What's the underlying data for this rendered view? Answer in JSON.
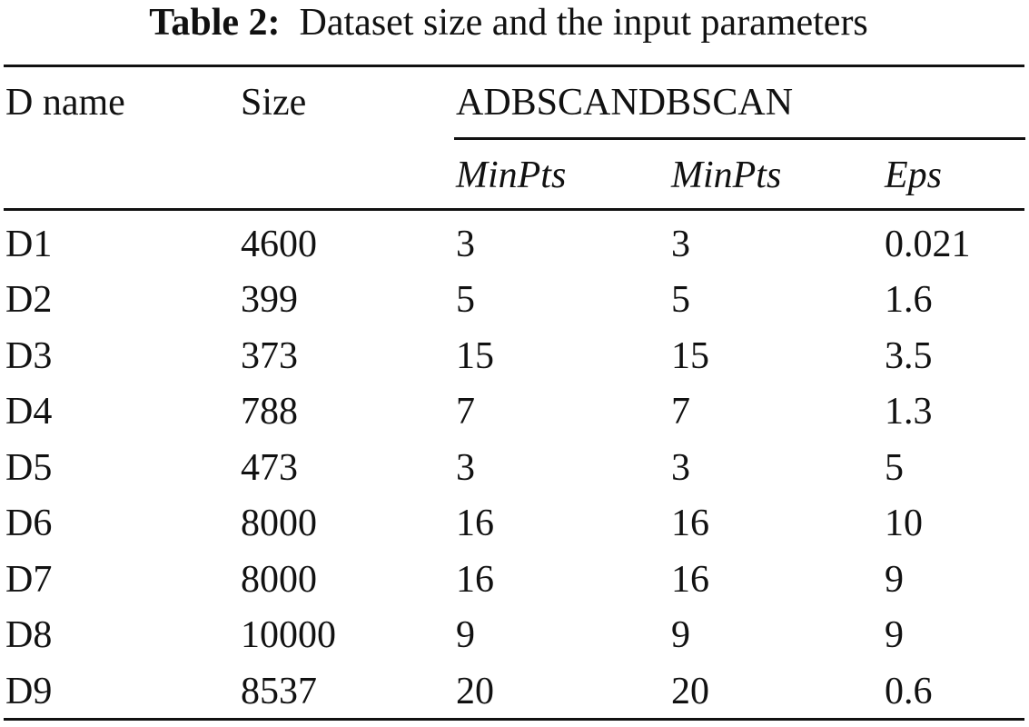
{
  "caption": {
    "label": "Table 2:",
    "text": "Dataset size and the input parameters"
  },
  "header": {
    "d_name": "D name",
    "size": "Size",
    "group": "ADBSCANDBSCAN",
    "sub": [
      "MinPts",
      "MinPts",
      "Eps"
    ]
  },
  "rows": [
    {
      "name": "D1",
      "size": "4600",
      "adbscan_minpts": "3",
      "dbscan_minpts": "3",
      "eps": "0.021"
    },
    {
      "name": "D2",
      "size": "399",
      "adbscan_minpts": "5",
      "dbscan_minpts": "5",
      "eps": "1.6"
    },
    {
      "name": "D3",
      "size": "373",
      "adbscan_minpts": "15",
      "dbscan_minpts": "15",
      "eps": "3.5"
    },
    {
      "name": "D4",
      "size": "788",
      "adbscan_minpts": "7",
      "dbscan_minpts": "7",
      "eps": "1.3"
    },
    {
      "name": "D5",
      "size": "473",
      "adbscan_minpts": "3",
      "dbscan_minpts": "3",
      "eps": "5"
    },
    {
      "name": "D6",
      "size": "8000",
      "adbscan_minpts": "16",
      "dbscan_minpts": "16",
      "eps": "10"
    },
    {
      "name": "D7",
      "size": "8000",
      "adbscan_minpts": "16",
      "dbscan_minpts": "16",
      "eps": "9"
    },
    {
      "name": "D8",
      "size": "10000",
      "adbscan_minpts": "9",
      "dbscan_minpts": "9",
      "eps": "9"
    },
    {
      "name": "D9",
      "size": "8537",
      "adbscan_minpts": "20",
      "dbscan_minpts": "20",
      "eps": "0.6"
    }
  ]
}
